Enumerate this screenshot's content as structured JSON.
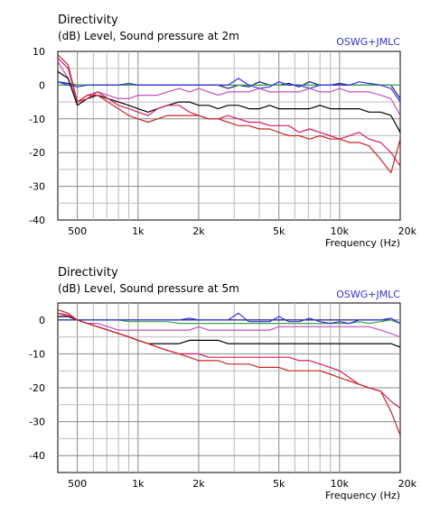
{
  "chart_data": [
    {
      "type": "line",
      "title": "Directivity",
      "subtitle": "(dB)  Level, Sound pressure at 2m",
      "tag": "OSWG+JMLC",
      "xlabel": "Frequency  (Hz)",
      "x_scale": "log",
      "xlim": [
        400,
        20000
      ],
      "ylim": [
        -40,
        10
      ],
      "x_tick_values": [
        500,
        1000,
        2000,
        5000,
        10000,
        20000
      ],
      "x_tick_labels": [
        "500",
        "1k",
        "2k",
        "5k",
        "10k",
        "20k"
      ],
      "y_ticks": [
        10,
        0,
        -10,
        -20,
        -30,
        -40
      ],
      "grid": true,
      "x": [
        400,
        450,
        500,
        560,
        630,
        710,
        800,
        900,
        1000,
        1120,
        1250,
        1400,
        1600,
        1800,
        2000,
        2240,
        2500,
        2800,
        3150,
        3550,
        4000,
        4500,
        5000,
        5600,
        6300,
        7100,
        8000,
        9000,
        10000,
        11200,
        12500,
        14000,
        16000,
        18000,
        20000
      ],
      "series": [
        {
          "color": "#1a1a7a",
          "values": [
            1,
            0.5,
            0,
            0,
            0,
            0,
            0,
            0,
            0,
            0,
            0,
            0,
            0,
            0,
            0,
            0,
            0,
            -1,
            0,
            -0.5,
            1,
            0,
            0,
            0.5,
            -0.5,
            1,
            0,
            0,
            0.5,
            0,
            0,
            0,
            0,
            0,
            -4
          ]
        },
        {
          "color": "#3aa648",
          "values": [
            0,
            0,
            0,
            0,
            0,
            0,
            0,
            0,
            0,
            0,
            0,
            0,
            0,
            0,
            0,
            0,
            0,
            0,
            0,
            0,
            0,
            0,
            0,
            0,
            0,
            0,
            0,
            0,
            0,
            0,
            0,
            0,
            0,
            0,
            0
          ]
        },
        {
          "color": "#3333dd",
          "values": [
            1,
            0,
            -0.5,
            0,
            0,
            0,
            0,
            0.5,
            0,
            0,
            0,
            0,
            0,
            0,
            0,
            0,
            0,
            0,
            2,
            0,
            -1,
            -0.5,
            1,
            0,
            0,
            -1,
            0,
            0,
            0,
            0,
            1,
            0.5,
            0,
            -1,
            -5
          ]
        },
        {
          "color": "#c050c0",
          "values": [
            7,
            2,
            -5,
            -3,
            -2,
            -3,
            -4,
            -4,
            -3,
            -3,
            -3,
            -2,
            -1,
            -2,
            -1,
            -2,
            -3,
            -2,
            -2,
            -2,
            -1,
            -2,
            -2,
            -2,
            -2,
            -1,
            -2,
            -2,
            -1,
            -2,
            -2,
            -2,
            -3,
            -4,
            -9
          ]
        },
        {
          "color": "#000000",
          "values": [
            4,
            2,
            -6,
            -4,
            -3,
            -4,
            -5,
            -6,
            -7,
            -8,
            -7,
            -6,
            -5,
            -5,
            -6,
            -6,
            -7,
            -6,
            -6,
            -7,
            -7,
            -6,
            -7,
            -7,
            -7,
            -7,
            -6,
            -7,
            -7,
            -7,
            -7,
            -8,
            -8,
            -9,
            -14
          ]
        },
        {
          "color": "#d81b60",
          "values": [
            8,
            5,
            -5,
            -4,
            -2,
            -4,
            -6,
            -7,
            -8,
            -9,
            -7,
            -6,
            -6,
            -8,
            -9,
            -10,
            -10,
            -9,
            -10,
            -11,
            -11,
            -12,
            -12,
            -12,
            -14,
            -13,
            -14,
            -15,
            -16,
            -15,
            -14,
            -16,
            -17,
            -20,
            -24
          ]
        },
        {
          "color": "#c62828",
          "values": [
            9,
            6,
            -5,
            -3,
            -3,
            -5,
            -7,
            -9,
            -10,
            -11,
            -10,
            -9,
            -9,
            -9,
            -9,
            -10,
            -10,
            -11,
            -12,
            -12,
            -13,
            -13,
            -14,
            -15,
            -15,
            -16,
            -15,
            -16,
            -16,
            -17,
            -17,
            -18,
            -22,
            -26,
            -16
          ]
        }
      ]
    },
    {
      "type": "line",
      "title": "Directivity",
      "subtitle": "(dB)  Level, Sound pressure at 5m",
      "tag": "OSWG+JMLC",
      "xlabel": "Frequency  (Hz)",
      "x_scale": "log",
      "xlim": [
        400,
        20000
      ],
      "ylim": [
        -45,
        5
      ],
      "x_tick_values": [
        500,
        1000,
        2000,
        5000,
        10000,
        20000
      ],
      "x_tick_labels": [
        "500",
        "1k",
        "2k",
        "5k",
        "10k",
        "20k"
      ],
      "y_ticks": [
        0,
        -10,
        -20,
        -30,
        -40
      ],
      "grid": true,
      "x": [
        400,
        450,
        500,
        560,
        630,
        710,
        800,
        900,
        1000,
        1120,
        1250,
        1400,
        1600,
        1800,
        2000,
        2240,
        2500,
        2800,
        3150,
        3550,
        4000,
        4500,
        5000,
        5600,
        6300,
        7100,
        8000,
        9000,
        10000,
        11200,
        12500,
        14000,
        16000,
        18000,
        20000
      ],
      "series": [
        {
          "color": "#1a1a7a",
          "values": [
            0,
            0,
            0,
            0,
            0,
            0,
            0,
            0,
            0,
            0,
            0,
            0,
            0,
            0,
            0,
            0,
            0,
            0,
            0,
            0,
            0,
            0,
            0,
            0,
            0,
            0,
            0,
            0,
            0,
            0,
            0,
            0,
            0,
            0,
            -1
          ]
        },
        {
          "color": "#3aa648",
          "values": [
            0,
            0,
            0,
            0,
            0,
            0,
            0,
            -0.5,
            -0.5,
            -0.5,
            -0.5,
            -0.5,
            -1,
            -1,
            -1,
            -1,
            -1,
            -1,
            -1,
            -1,
            -1,
            -1,
            -1,
            -1,
            -1,
            -1,
            -1,
            -1,
            -1,
            -1,
            -0.5,
            -1,
            -0.5,
            0,
            -1
          ]
        },
        {
          "color": "#3333dd",
          "values": [
            0,
            0,
            0,
            0,
            0,
            0,
            0,
            0,
            0,
            0,
            0,
            0,
            0,
            0.5,
            0,
            0,
            0,
            0,
            2,
            -0.5,
            -0.5,
            -0.5,
            1,
            -0.5,
            -0.5,
            0.5,
            -0.5,
            -1,
            -0.5,
            -1,
            0,
            0,
            0,
            0.5,
            -1
          ]
        },
        {
          "color": "#c050c0",
          "values": [
            2,
            1,
            0,
            -1,
            -1,
            -2,
            -3,
            -3,
            -3,
            -3,
            -3,
            -3,
            -3,
            -3,
            -2,
            -3,
            -3,
            -3,
            -3,
            -3,
            -3,
            -3,
            -2,
            -2,
            -2,
            -2,
            -2,
            -2,
            -2,
            -2,
            -2,
            -2,
            -3,
            -4,
            -5
          ]
        },
        {
          "color": "#000000",
          "values": [
            1,
            1,
            0,
            -1,
            -2,
            -3,
            -4,
            -5,
            -6,
            -7,
            -7,
            -7,
            -7,
            -6,
            -6,
            -6,
            -6,
            -7,
            -7,
            -7,
            -7,
            -7,
            -7,
            -7,
            -7,
            -7,
            -7,
            -7,
            -7,
            -7,
            -7,
            -7,
            -7,
            -7,
            -8
          ]
        },
        {
          "color": "#d81b60",
          "values": [
            2,
            1.5,
            0,
            -1,
            -2,
            -3,
            -4,
            -5,
            -6,
            -7,
            -8,
            -9,
            -10,
            -10,
            -10,
            -11,
            -11,
            -11,
            -11,
            -11,
            -11,
            -11,
            -11,
            -11,
            -12,
            -12,
            -13,
            -14,
            -15,
            -17,
            -19,
            -20,
            -21,
            -24,
            -26
          ]
        },
        {
          "color": "#c62828",
          "values": [
            3,
            2,
            0,
            -1,
            -2,
            -3,
            -4,
            -5,
            -6,
            -7,
            -8,
            -9,
            -10,
            -11,
            -12,
            -12,
            -12,
            -13,
            -13,
            -13,
            -14,
            -14,
            -14,
            -15,
            -15,
            -15,
            -15,
            -16,
            -17,
            -18,
            -19,
            -20,
            -21,
            -27,
            -34
          ]
        }
      ]
    }
  ]
}
